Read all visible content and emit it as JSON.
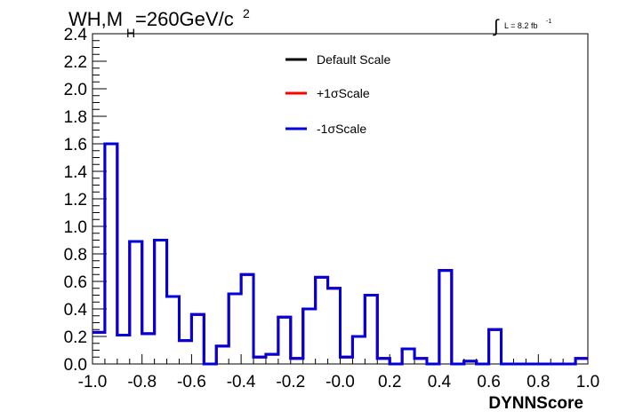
{
  "header": {
    "title_prefix": "WH,M",
    "title_subscript": "H",
    "title_value": "=260GeV/c",
    "title_superscript": "2",
    "lumi_integral": "∫",
    "lumi_text": "L = 8.2 fb",
    "lumi_superscript": "-1"
  },
  "colors": {
    "default_scale": "#000000",
    "plus_sigma": "#ff0000",
    "minus_sigma": "#0000dd"
  },
  "chart_data": {
    "type": "line",
    "histogram": "step",
    "xlabel": "DYNNScore",
    "ylabel": "",
    "xlim": [
      -1.0,
      1.0
    ],
    "ylim": [
      0,
      2.4
    ],
    "x_ticks": [
      -1.0,
      -0.8,
      -0.6,
      -0.4,
      -0.2,
      0.0,
      0.2,
      0.4,
      0.6,
      0.8,
      1.0
    ],
    "x_tick_labels": [
      "-1.0",
      "-0.8",
      "-0.6",
      "-0.4",
      "-0.2",
      "-0.0",
      "0.2",
      "0.4",
      "0.6",
      "0.8",
      "1.0"
    ],
    "y_ticks": [
      0,
      0.2,
      0.4,
      0.6,
      0.8,
      1.0,
      1.2,
      1.4,
      1.6,
      1.8,
      2.0,
      2.2,
      2.4
    ],
    "y_tick_labels": [
      "0.0",
      "0.2",
      "0.4",
      "0.6",
      "0.8",
      "1.0",
      "1.2",
      "1.4",
      "1.6",
      "1.8",
      "2.0",
      "2.2",
      "2.4"
    ],
    "bin_edges": [
      -1.0,
      -0.95,
      -0.9,
      -0.85,
      -0.8,
      -0.75,
      -0.7,
      -0.65,
      -0.6,
      -0.55,
      -0.5,
      -0.45,
      -0.4,
      -0.35,
      -0.3,
      -0.25,
      -0.2,
      -0.15,
      -0.1,
      -0.05,
      0.0,
      0.05,
      0.1,
      0.15,
      0.2,
      0.25,
      0.3,
      0.35,
      0.4,
      0.45,
      0.5,
      0.55,
      0.6,
      0.65,
      0.7,
      0.75,
      0.8,
      0.85,
      0.9,
      0.95,
      1.0
    ],
    "legend_position": "top-center",
    "grid": false,
    "series": [
      {
        "name": "Default Scale",
        "color": "#000000",
        "values": [
          0.23,
          1.6,
          0.21,
          0.89,
          0.22,
          0.9,
          0.49,
          0.17,
          0.36,
          0.0,
          0.13,
          0.51,
          0.65,
          0.05,
          0.07,
          0.34,
          0.04,
          0.4,
          0.63,
          0.55,
          0.05,
          0.2,
          0.5,
          0.04,
          0.0,
          0.11,
          0.04,
          0.0,
          0.68,
          0.0,
          0.02,
          0.0,
          0.25,
          0.0,
          0.0,
          0.0,
          0.0,
          0.0,
          0.0,
          0.04
        ]
      },
      {
        "name": "+1σScale",
        "color": "#ff0000",
        "values": [
          0.23,
          1.6,
          0.21,
          0.89,
          0.22,
          0.9,
          0.49,
          0.17,
          0.36,
          0.0,
          0.13,
          0.51,
          0.65,
          0.05,
          0.07,
          0.34,
          0.04,
          0.4,
          0.63,
          0.55,
          0.05,
          0.2,
          0.5,
          0.04,
          0.0,
          0.11,
          0.04,
          0.0,
          0.68,
          0.0,
          0.02,
          0.0,
          0.25,
          0.0,
          0.0,
          0.0,
          0.0,
          0.0,
          0.0,
          0.04
        ]
      },
      {
        "name": "-1σScale",
        "color": "#0000dd",
        "values": [
          0.23,
          1.6,
          0.21,
          0.89,
          0.22,
          0.9,
          0.49,
          0.17,
          0.36,
          0.0,
          0.13,
          0.51,
          0.65,
          0.05,
          0.07,
          0.34,
          0.04,
          0.4,
          0.63,
          0.55,
          0.05,
          0.2,
          0.5,
          0.04,
          0.0,
          0.11,
          0.04,
          0.0,
          0.68,
          0.0,
          0.02,
          0.0,
          0.25,
          0.0,
          0.0,
          0.0,
          0.0,
          0.0,
          0.0,
          0.04
        ]
      }
    ]
  }
}
